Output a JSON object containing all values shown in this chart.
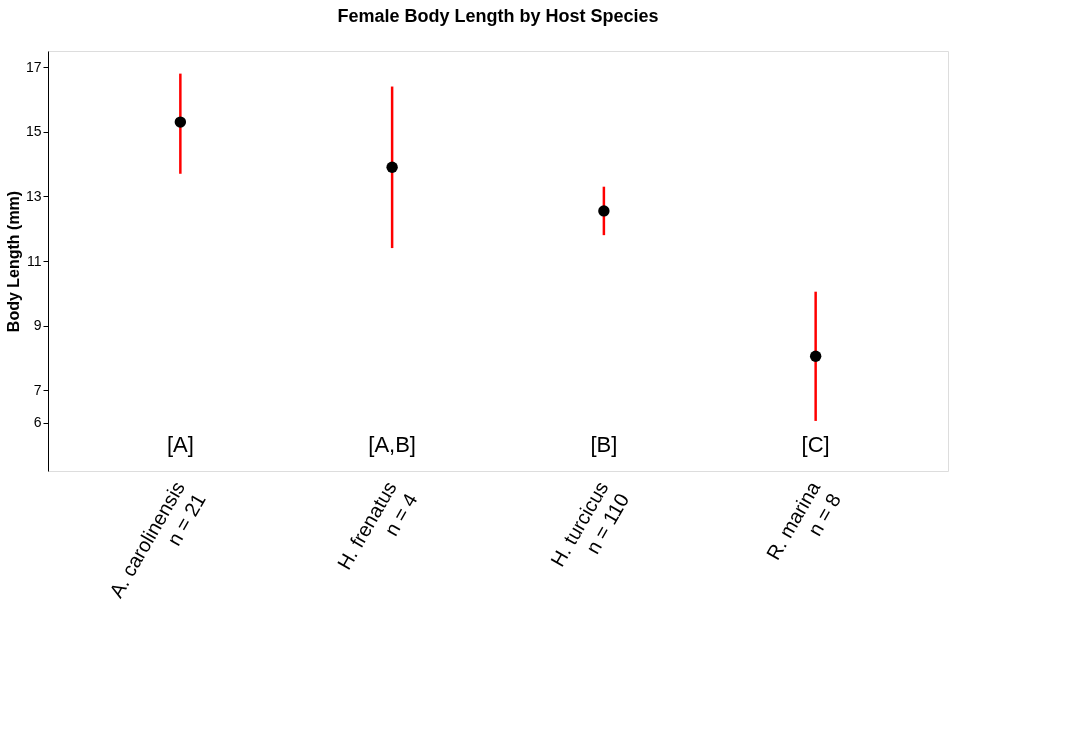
{
  "chart_data": {
    "type": "scatter",
    "title": "Female Body Length by Host Species",
    "ylabel": "Body Length (mm)",
    "categories": [
      "A. carolinensis\nn = 21",
      "H. frenatus\nn = 4",
      "H. turcicus\nn = 110",
      "R. marina\nn = 8"
    ],
    "series": [
      {
        "color": "#000000",
        "values": [
          15.3,
          13.9,
          12.55,
          8.05
        ],
        "errors": [
          [
            13.7,
            16.8
          ],
          [
            11.4,
            16.4
          ],
          [
            11.8,
            13.3
          ],
          [
            6.05,
            10.05
          ]
        ]
      }
    ],
    "ylim": [
      4.5,
      17.5
    ],
    "yticks": [
      6,
      7,
      9,
      11,
      13,
      15,
      17
    ],
    "marker": "circle",
    "grid": false,
    "legend": false,
    "annotations": [
      "[A]",
      "[A,B]",
      "[B]",
      "[C]"
    ]
  }
}
